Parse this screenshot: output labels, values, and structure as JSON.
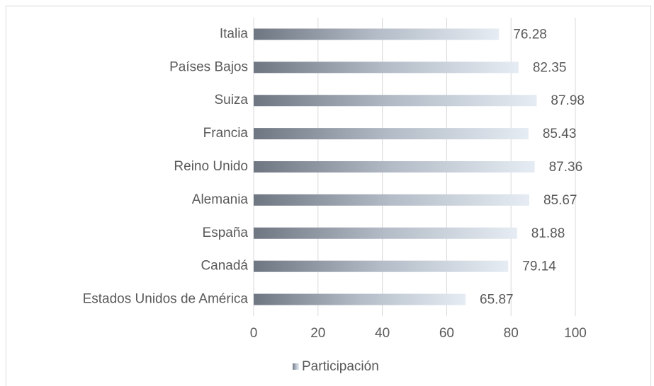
{
  "chart_data": {
    "type": "hbar",
    "categories": [
      "Italia",
      "Países Bajos",
      "Suiza",
      "Francia",
      "Reino Unido",
      "Alemania",
      "España",
      "Canadá",
      "Estados Unidos de América"
    ],
    "series": [
      {
        "name": "Participación",
        "color": "#9aa3ad",
        "values": [
          76.28,
          82.35,
          87.98,
          85.43,
          87.36,
          85.67,
          81.88,
          79.14,
          65.87
        ]
      }
    ],
    "xlim": [
      0,
      100
    ],
    "xticks": [
      0,
      20,
      40,
      60,
      80,
      100
    ],
    "grid": true,
    "legend": "bottom",
    "data_labels": true
  }
}
